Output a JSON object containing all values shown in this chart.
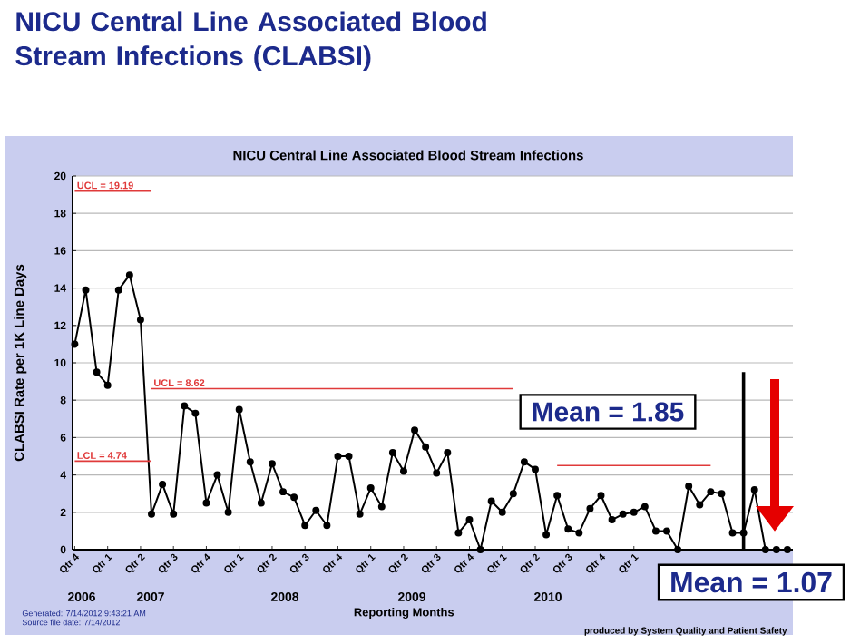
{
  "chart_data": {
    "type": "line",
    "title": "NICU Central Line Associated Blood Stream Infections (CLABSI)",
    "subtitle": "NICU Central Line Associated Blood Stream Infections",
    "xlabel": "Reporting Months",
    "ylabel": "CLABSI Rate per 1K Line Days",
    "categories": [
      "Qtr 4",
      null,
      null,
      "Qtr 1",
      null,
      null,
      "Qtr 2",
      null,
      null,
      "Qtr 3",
      null,
      null,
      "Qtr 4",
      null,
      null,
      "Qtr 1",
      null,
      null,
      "Qtr 2",
      null,
      null,
      "Qtr 3",
      null,
      null,
      "Qtr 4",
      null,
      null,
      "Qtr 1",
      null,
      null,
      "Qtr 2",
      null,
      null,
      "Qtr 3",
      null,
      null,
      "Qtr 4",
      null,
      null,
      "Qtr 1",
      null,
      null,
      "Qtr 2",
      null,
      null,
      "Qtr 3",
      null,
      null,
      "Qtr 4",
      null,
      null,
      "Qtr 1",
      null,
      null,
      null,
      null,
      null,
      null,
      null,
      null,
      null,
      null,
      null,
      null,
      null,
      null
    ],
    "series": [
      {
        "color": "#000000",
        "values": [
          11.0,
          13.9,
          9.5,
          8.8,
          13.9,
          14.7,
          12.3,
          1.9,
          3.5,
          1.9,
          7.7,
          7.3,
          2.5,
          4.0,
          2.0,
          7.5,
          4.7,
          2.5,
          4.6,
          3.1,
          2.8,
          1.3,
          2.1,
          1.3,
          5.0,
          5.0,
          1.9,
          3.3,
          2.3,
          5.2,
          4.2,
          6.4,
          5.5,
          4.1,
          5.2,
          0.9,
          1.6,
          0,
          2.6,
          2.0,
          3.0,
          4.7,
          4.3,
          0.8,
          2.9,
          1.1,
          0.9,
          2.2,
          2.9,
          1.6,
          1.9,
          2.0,
          2.3,
          1.0,
          1.0,
          0,
          3.4,
          2.4,
          3.1,
          3.0,
          0.9,
          0.9,
          3.2,
          0,
          0,
          0
        ]
      },
      {
        "name": "UCL = 19.19",
        "color": "#e03a3a",
        "marker": "none",
        "values": [
          19.19,
          19.19,
          19.19,
          19.19,
          19.19,
          19.19,
          19.19,
          19.19,
          null,
          null,
          null,
          null,
          null,
          null,
          null,
          null,
          null,
          null,
          null,
          null,
          null,
          null,
          null,
          null,
          null,
          null,
          null,
          null,
          null,
          null,
          null,
          null,
          null,
          null,
          null,
          null,
          null,
          null,
          null,
          null,
          null,
          null,
          null,
          null,
          null,
          null,
          null,
          null,
          null,
          null,
          null,
          null,
          null,
          null,
          null,
          null,
          null,
          null,
          null,
          null,
          null,
          null,
          null,
          null,
          null,
          null
        ]
      },
      {
        "name": "UCL = 8.62",
        "color": "#e03a3a",
        "marker": "none",
        "values": [
          null,
          null,
          null,
          null,
          null,
          null,
          null,
          8.62,
          8.62,
          8.62,
          8.62,
          8.62,
          8.62,
          8.62,
          8.62,
          8.62,
          8.62,
          8.62,
          8.62,
          8.62,
          8.62,
          8.62,
          8.62,
          8.62,
          8.62,
          8.62,
          8.62,
          8.62,
          8.62,
          8.62,
          8.62,
          8.62,
          8.62,
          8.62,
          8.62,
          8.62,
          8.62,
          8.62,
          8.62,
          8.62,
          8.62,
          null,
          null,
          null,
          null,
          null,
          null,
          null,
          null,
          null,
          null,
          null,
          null,
          null,
          null,
          null,
          null,
          null,
          null,
          null,
          null,
          null,
          null,
          null,
          null,
          null
        ]
      },
      {
        "name": "LCL = 4.74",
        "color": "#e03a3a",
        "marker": "none",
        "values": [
          4.74,
          4.74,
          4.74,
          4.74,
          4.74,
          4.74,
          4.74,
          4.74,
          null,
          null,
          null,
          null,
          null,
          null,
          null,
          null,
          null,
          null,
          null,
          null,
          null,
          null,
          null,
          null,
          null,
          null,
          null,
          null,
          null,
          null,
          null,
          null,
          null,
          null,
          null,
          null,
          null,
          null,
          null,
          null,
          null,
          null,
          null,
          null,
          null,
          null,
          null,
          null,
          null,
          null,
          null,
          null,
          null,
          null,
          null,
          null,
          null,
          null,
          null,
          null,
          null,
          null,
          null,
          null,
          null,
          null
        ]
      },
      {
        "color": "#e03a3a",
        "marker": "none",
        "values": [
          null,
          null,
          null,
          null,
          null,
          null,
          null,
          null,
          null,
          null,
          null,
          null,
          null,
          null,
          null,
          null,
          null,
          null,
          null,
          null,
          null,
          null,
          null,
          null,
          null,
          null,
          null,
          null,
          null,
          null,
          null,
          null,
          null,
          null,
          null,
          null,
          null,
          null,
          null,
          null,
          null,
          null,
          null,
          null,
          4.5,
          4.5,
          4.5,
          4.5,
          4.5,
          4.5,
          4.5,
          4.5,
          4.5,
          4.5,
          4.5,
          4.5,
          4.5,
          4.5,
          4.5,
          null,
          null,
          null,
          null,
          null,
          null,
          null
        ]
      }
    ],
    "ylim": [
      0,
      20
    ],
    "yticks": [
      0,
      2,
      4,
      6,
      8,
      10,
      12,
      14,
      16,
      18,
      20
    ],
    "grid": "y",
    "marker": "circle",
    "line_style": "solid",
    "annotations": [
      "Mean = 1.85",
      "Mean = 1.07",
      "2006",
      "2007",
      "2008",
      "2009",
      "2010",
      "Generated: 7/14/2012 9:43:21 AM",
      "Source file date: 7/14/2012",
      "produced by System Quality and Patient Safety"
    ]
  }
}
